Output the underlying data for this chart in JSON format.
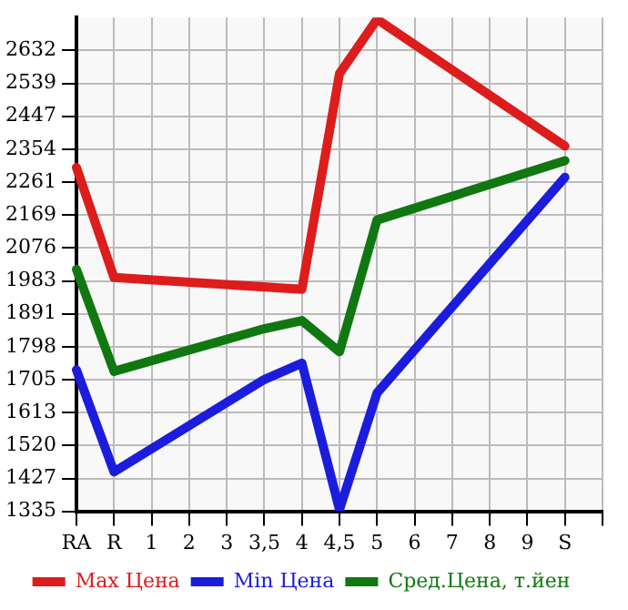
{
  "chart_data": {
    "type": "line",
    "categories": [
      "RA",
      "R",
      "1",
      "2",
      "3",
      "3,5",
      "4",
      "4,5",
      "5",
      "6",
      "7",
      "8",
      "9",
      "S",
      null
    ],
    "series": [
      {
        "name": "Max Цена",
        "color": "#dd1c1c",
        "values": [
          2303,
          1993,
          null,
          null,
          null,
          null,
          1960,
          2567,
          2720,
          null,
          null,
          null,
          null,
          2363,
          null
        ]
      },
      {
        "name": "Min Цена",
        "color": "#1c1cdd",
        "values": [
          1733,
          1446,
          null,
          null,
          null,
          1706,
          1752,
          1340,
          1668,
          null,
          null,
          null,
          null,
          2275,
          null
        ]
      },
      {
        "name": "Сред.Цена, т.йен",
        "color": "#117711",
        "values": [
          2016,
          1729,
          null,
          null,
          null,
          1849,
          1872,
          1784,
          2155,
          null,
          null,
          null,
          null,
          2322,
          null
        ]
      }
    ],
    "ylim": [
      1335,
      2725
    ],
    "yticks": [
      1335,
      1427,
      1520,
      1613,
      1705,
      1798,
      1891,
      1983,
      2076,
      2169,
      2261,
      2354,
      2447,
      2539,
      2632
    ],
    "grid": true,
    "legend": "bottom",
    "marker": "none",
    "line_style": "solid"
  }
}
